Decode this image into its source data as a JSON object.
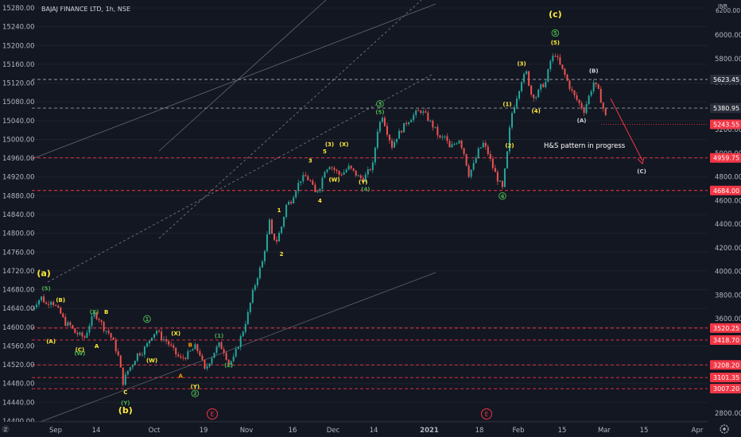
{
  "header": {
    "symbol_title": "BAJAJ FINANCE LTD, 1h, NSE"
  },
  "chart_data": {
    "type": "candlestick",
    "title": "BAJAJ FINANCE LTD, 1h, NSE",
    "left_axis": {
      "ticks": [
        "15280.00",
        "15240.00",
        "15200.00",
        "15160.00",
        "15120.00",
        "15080.00",
        "15040.00",
        "15000.00",
        "14960.00",
        "14920.00",
        "14880.00",
        "14840.00",
        "14800.00",
        "14760.00",
        "14720.00",
        "14680.00",
        "14640.00",
        "14600.00",
        "14560.00",
        "14520.00",
        "14480.00",
        "14440.00",
        "14400.00"
      ],
      "range": [
        14400,
        15280
      ]
    },
    "right_axis": {
      "unit": "INR",
      "top_label": "6200.00",
      "ticks": [
        "6000.00",
        "5800.00",
        "5600.00",
        "5400.00",
        "5200.00",
        "5000.00",
        "4800.00",
        "4600.00",
        "4400.00",
        "4200.00",
        "4000.00",
        "3800.00",
        "3600.00",
        "3400.00",
        "3200.00",
        "3000.00",
        "2800.00"
      ],
      "range": [
        2800,
        6000
      ]
    },
    "x_axis": {
      "ticks": [
        "Sep",
        "14",
        "Oct",
        "19",
        "Nov",
        "16",
        "Dec",
        "14",
        "2021",
        "18",
        "Feb",
        "15",
        "Mar",
        "15",
        "Apr"
      ]
    },
    "price_levels": [
      {
        "value": 5623.45,
        "label": "5623.45",
        "style": "dashed",
        "color": "#9598a1"
      },
      {
        "value": 5380.95,
        "label": "5380.95",
        "style": "dashed",
        "color": "#9598a1"
      },
      {
        "value": 5243.55,
        "label": "5243.55",
        "style": "current",
        "color": "#f23645"
      },
      {
        "value": 4959.75,
        "label": "4959.75",
        "style": "dashed",
        "color": "#f23645"
      },
      {
        "value": 4684.0,
        "label": "4684.00",
        "style": "dashed",
        "color": "#f23645"
      },
      {
        "value": 3520.25,
        "label": "3520.25",
        "style": "dashed",
        "color": "#f23645"
      },
      {
        "value": 3418.7,
        "label": "3418.70",
        "style": "dashed",
        "color": "#f23645"
      },
      {
        "value": 3208.2,
        "label": "3208.20",
        "style": "dashed",
        "color": "#f23645"
      },
      {
        "value": 3101.35,
        "label": "3101.35",
        "style": "dashed",
        "color": "#f23645"
      },
      {
        "value": 3007.2,
        "label": "3007.20",
        "style": "dashed",
        "color": "#f23645"
      }
    ],
    "price_path": [
      [
        0,
        3680
      ],
      [
        2,
        3740
      ],
      [
        4,
        3780
      ],
      [
        6,
        3720
      ],
      [
        8,
        3760
      ],
      [
        10,
        3700
      ],
      [
        12,
        3640
      ],
      [
        14,
        3560
      ],
      [
        16,
        3540
      ],
      [
        18,
        3480
      ],
      [
        20,
        3460
      ],
      [
        22,
        3440
      ],
      [
        24,
        3550
      ],
      [
        26,
        3640
      ],
      [
        28,
        3600
      ],
      [
        30,
        3520
      ],
      [
        32,
        3480
      ],
      [
        34,
        3400
      ],
      [
        36,
        3280
      ],
      [
        38,
        3060
      ],
      [
        40,
        3160
      ],
      [
        42,
        3220
      ],
      [
        44,
        3300
      ],
      [
        46,
        3320
      ],
      [
        48,
        3380
      ],
      [
        50,
        3460
      ],
      [
        52,
        3500
      ],
      [
        54,
        3440
      ],
      [
        56,
        3410
      ],
      [
        58,
        3360
      ],
      [
        60,
        3300
      ],
      [
        62,
        3260
      ],
      [
        64,
        3280
      ],
      [
        66,
        3320
      ],
      [
        68,
        3360
      ],
      [
        70,
        3300
      ],
      [
        72,
        3160
      ],
      [
        74,
        3240
      ],
      [
        76,
        3320
      ],
      [
        78,
        3380
      ],
      [
        80,
        3330
      ],
      [
        82,
        3220
      ],
      [
        84,
        3260
      ],
      [
        86,
        3380
      ],
      [
        88,
        3500
      ],
      [
        90,
        3640
      ],
      [
        92,
        3820
      ],
      [
        94,
        3960
      ],
      [
        96,
        4080
      ],
      [
        98,
        4300
      ],
      [
        99,
        4420
      ],
      [
        100,
        4300
      ],
      [
        102,
        4260
      ],
      [
        104,
        4380
      ],
      [
        106,
        4560
      ],
      [
        108,
        4600
      ],
      [
        110,
        4700
      ],
      [
        112,
        4780
      ],
      [
        114,
        4800
      ],
      [
        116,
        4760
      ],
      [
        118,
        4660
      ],
      [
        120,
        4720
      ],
      [
        122,
        4860
      ],
      [
        124,
        4900
      ],
      [
        126,
        4860
      ],
      [
        128,
        4820
      ],
      [
        130,
        4840
      ],
      [
        132,
        4880
      ],
      [
        134,
        4840
      ],
      [
        136,
        4800
      ],
      [
        138,
        4780
      ],
      [
        140,
        4840
      ],
      [
        142,
        4900
      ],
      [
        144,
        5200
      ],
      [
        146,
        5320
      ],
      [
        148,
        5180
      ],
      [
        150,
        5060
      ],
      [
        152,
        5140
      ],
      [
        154,
        5200
      ],
      [
        156,
        5260
      ],
      [
        158,
        5300
      ],
      [
        160,
        5340
      ],
      [
        162,
        5360
      ],
      [
        164,
        5320
      ],
      [
        166,
        5260
      ],
      [
        168,
        5200
      ],
      [
        170,
        5120
      ],
      [
        172,
        5140
      ],
      [
        174,
        5040
      ],
      [
        176,
        5080
      ],
      [
        178,
        5120
      ],
      [
        180,
        5000
      ],
      [
        182,
        4820
      ],
      [
        184,
        4900
      ],
      [
        186,
        5020
      ],
      [
        188,
        5080
      ],
      [
        190,
        5000
      ],
      [
        192,
        4880
      ],
      [
        194,
        4780
      ],
      [
        196,
        4700
      ],
      [
        198,
        5000
      ],
      [
        199,
        5200
      ],
      [
        200,
        5340
      ],
      [
        202,
        5480
      ],
      [
        204,
        5620
      ],
      [
        206,
        5680
      ],
      [
        208,
        5500
      ],
      [
        210,
        5480
      ],
      [
        212,
        5560
      ],
      [
        214,
        5600
      ],
      [
        216,
        5780
      ],
      [
        218,
        5840
      ],
      [
        220,
        5740
      ],
      [
        222,
        5660
      ],
      [
        224,
        5560
      ],
      [
        226,
        5480
      ],
      [
        228,
        5420
      ],
      [
        230,
        5360
      ],
      [
        232,
        5480
      ],
      [
        234,
        5600
      ],
      [
        236,
        5520
      ],
      [
        238,
        5380
      ],
      [
        240,
        5240
      ]
    ]
  },
  "annotations": {
    "pattern_note": "H&S pattern in progress",
    "waves": [
      {
        "text": "(c)",
        "color": "#ffeb3b",
        "size": 11,
        "bi": 218,
        "price": 6150
      },
      {
        "text": "5",
        "color": "#4caf50",
        "circle": true,
        "size": 7,
        "bi": 218,
        "price": 6000
      },
      {
        "text": "(5)",
        "color": "#ffeb3b",
        "size": 7,
        "bi": 218,
        "price": 5920
      },
      {
        "text": "(3)",
        "color": "#ffeb3b",
        "size": 7,
        "bi": 204,
        "price": 5740
      },
      {
        "text": "(B)",
        "color": "#d1d4dc",
        "size": 7,
        "bi": 234,
        "price": 5680
      },
      {
        "text": "(1)",
        "color": "#ffeb3b",
        "size": 7,
        "bi": 198,
        "price": 5400
      },
      {
        "text": "(4)",
        "color": "#ffeb3b",
        "size": 7,
        "bi": 210,
        "price": 5340
      },
      {
        "text": "(A)",
        "color": "#d1d4dc",
        "size": 7,
        "bi": 229,
        "price": 5260
      },
      {
        "text": "(2)",
        "color": "#ffeb3b",
        "size": 7,
        "bi": 199,
        "price": 5050
      },
      {
        "text": "(C)",
        "color": "#d1d4dc",
        "size": 7,
        "bi": 254,
        "price": 4830
      },
      {
        "text": "4",
        "color": "#4caf50",
        "circle": true,
        "size": 7,
        "bi": 196,
        "price": 4620
      },
      {
        "text": "3",
        "color": "#4caf50",
        "circle": true,
        "size": 7,
        "bi": 145,
        "price": 5400
      },
      {
        "text": "(5)",
        "color": "#4caf50",
        "size": 7,
        "bi": 145,
        "price": 5330
      },
      {
        "text": "(3)",
        "color": "#ffeb3b",
        "size": 7,
        "bi": 124,
        "price": 5060
      },
      {
        "text": "5",
        "color": "#ffeb3b",
        "size": 7,
        "bi": 122,
        "price": 5000
      },
      {
        "text": "(X)",
        "color": "#ffeb3b",
        "size": 7,
        "bi": 130,
        "price": 5060
      },
      {
        "text": "3",
        "color": "#ffeb3b",
        "size": 7,
        "bi": 116,
        "price": 4920
      },
      {
        "text": "(W)",
        "color": "#ffeb3b",
        "size": 7,
        "bi": 126,
        "price": 4760
      },
      {
        "text": "(Y)",
        "color": "#ffeb3b",
        "size": 7,
        "bi": 138,
        "price": 4740
      },
      {
        "text": "(4)",
        "color": "#4caf50",
        "size": 7,
        "bi": 139,
        "price": 4680
      },
      {
        "text": "4",
        "color": "#ffeb3b",
        "size": 7,
        "bi": 120,
        "price": 4580
      },
      {
        "text": "1",
        "color": "#ffeb3b",
        "size": 7,
        "bi": 103,
        "price": 4500
      },
      {
        "text": "2",
        "color": "#ffeb3b",
        "size": 7,
        "bi": 104,
        "price": 4130
      },
      {
        "text": "(a)",
        "color": "#ffeb3b",
        "size": 11,
        "bi": 5,
        "price": 3960
      },
      {
        "text": "(5)",
        "color": "#4caf50",
        "size": 7,
        "bi": 6,
        "price": 3840
      },
      {
        "text": "(B)",
        "color": "#ffeb3b",
        "size": 7,
        "bi": 12,
        "price": 3740
      },
      {
        "text": "(X)",
        "color": "#4caf50",
        "size": 7,
        "bi": 26,
        "price": 3640
      },
      {
        "text": "B",
        "color": "#ffeb3b",
        "size": 7,
        "bi": 31,
        "price": 3640
      },
      {
        "text": "(A)",
        "color": "#ffeb3b",
        "size": 7,
        "bi": 8,
        "price": 3390
      },
      {
        "text": "(C)",
        "color": "#ffeb3b",
        "size": 7,
        "bi": 20,
        "price": 3320
      },
      {
        "text": "(W)",
        "color": "#4caf50",
        "size": 7,
        "bi": 20,
        "price": 3290
      },
      {
        "text": "A",
        "color": "#ffeb3b",
        "size": 7,
        "bi": 27,
        "price": 3350
      },
      {
        "text": "C",
        "color": "#ffeb3b",
        "size": 7,
        "bi": 39,
        "price": 2960
      },
      {
        "text": "(Y)",
        "color": "#4caf50",
        "size": 7,
        "bi": 39,
        "price": 2870
      },
      {
        "text": "(b)",
        "color": "#ffeb3b",
        "size": 11,
        "bi": 39,
        "price": 2800
      },
      {
        "text": "1",
        "color": "#4caf50",
        "circle": true,
        "size": 7,
        "bi": 48,
        "price": 3580
      },
      {
        "text": "(X)",
        "color": "#ffeb3b",
        "size": 7,
        "bi": 60,
        "price": 3460
      },
      {
        "text": "(W)",
        "color": "#ffeb3b",
        "size": 7,
        "bi": 50,
        "price": 3230
      },
      {
        "text": "B",
        "color": "#ff9800",
        "size": 7,
        "bi": 66,
        "price": 3360
      },
      {
        "text": "A",
        "color": "#ff9800",
        "size": 7,
        "bi": 62,
        "price": 3100
      },
      {
        "text": "(1)",
        "color": "#4caf50",
        "size": 7,
        "bi": 78,
        "price": 3440
      },
      {
        "text": "(2)",
        "color": "#4caf50",
        "size": 7,
        "bi": 82,
        "price": 3190
      },
      {
        "text": "(Y)",
        "color": "#ffeb3b",
        "size": 7,
        "bi": 68,
        "price": 3010
      },
      {
        "text": "2",
        "color": "#4caf50",
        "circle": true,
        "size": 7,
        "bi": 68,
        "price": 2950
      }
    ]
  },
  "events": [
    {
      "label": "E",
      "color": "#f23645"
    },
    {
      "label": "E",
      "color": "#f23645"
    }
  ],
  "corner_icons": [
    "tradingview-logo-icon",
    "gear-icon"
  ],
  "colors": {
    "background": "#131722",
    "up": "#26a69a",
    "down": "#ef5350",
    "grid": "#1e222d",
    "text": "#b2b5be",
    "trend_line": "#787b86"
  }
}
